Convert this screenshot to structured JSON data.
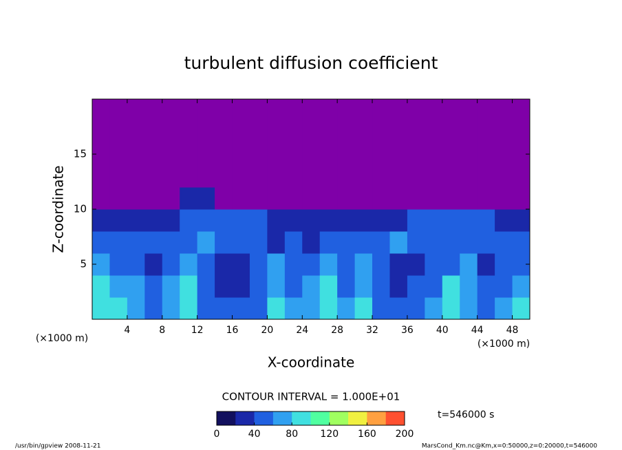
{
  "chart_data": {
    "type": "contour",
    "title": "turbulent diffusion coefficient",
    "xlabel": "X-coordinate",
    "ylabel": "Z-coordinate",
    "x_unit": "(×1000 m)",
    "y_unit": "(×1000 m)",
    "xlim": [
      0,
      50
    ],
    "ylim": [
      0,
      20
    ],
    "xticks": [
      4,
      8,
      12,
      16,
      20,
      24,
      28,
      32,
      36,
      40,
      44,
      48
    ],
    "yticks": [
      5,
      10,
      15
    ],
    "null_color": "#7f00a8",
    "z": [
      [
        90,
        80,
        60,
        50,
        70,
        90,
        50,
        40,
        40,
        50,
        90,
        60,
        70,
        90,
        60,
        80,
        50,
        40,
        50,
        60,
        90,
        70,
        50,
        60,
        80
      ],
      [
        80,
        60,
        70,
        50,
        60,
        80,
        40,
        30,
        30,
        40,
        70,
        50,
        60,
        80,
        50,
        70,
        40,
        30,
        40,
        50,
        80,
        60,
        40,
        50,
        70
      ],
      [
        60,
        40,
        50,
        30,
        40,
        70,
        50,
        30,
        30,
        40,
        60,
        40,
        50,
        70,
        40,
        60,
        40,
        30,
        30,
        40,
        50,
        60,
        30,
        40,
        50
      ],
      [
        40,
        50,
        40,
        50,
        40,
        50,
        60,
        50,
        40,
        40,
        30,
        40,
        30,
        40,
        50,
        40,
        50,
        60,
        50,
        50,
        40,
        50,
        40,
        40,
        50
      ],
      [
        30,
        30,
        30,
        30,
        20,
        40,
        40,
        40,
        40,
        40,
        20,
        20,
        20,
        20,
        20,
        20,
        20,
        20,
        40,
        40,
        40,
        40,
        40,
        30,
        30
      ],
      [
        null,
        null,
        null,
        null,
        null,
        20,
        20,
        null,
        null,
        null,
        null,
        null,
        null,
        null,
        null,
        null,
        null,
        null,
        null,
        null,
        null,
        null,
        null,
        null,
        null
      ],
      [
        null,
        null,
        null,
        null,
        null,
        null,
        null,
        null,
        null,
        null,
        null,
        null,
        null,
        null,
        null,
        null,
        null,
        null,
        null,
        null,
        null,
        null,
        null,
        null,
        null
      ],
      [
        null,
        null,
        null,
        null,
        null,
        null,
        null,
        null,
        null,
        null,
        null,
        null,
        null,
        null,
        null,
        null,
        null,
        null,
        null,
        null,
        null,
        null,
        null,
        null,
        null
      ],
      [
        null,
        null,
        null,
        null,
        null,
        null,
        null,
        null,
        null,
        null,
        null,
        null,
        null,
        null,
        null,
        null,
        null,
        null,
        null,
        null,
        null,
        null,
        null,
        null,
        null
      ],
      [
        null,
        null,
        null,
        null,
        null,
        null,
        null,
        null,
        null,
        null,
        null,
        null,
        null,
        null,
        null,
        null,
        null,
        null,
        null,
        null,
        null,
        null,
        null,
        null,
        null
      ]
    ],
    "clim": [
      0,
      200
    ],
    "colors": [
      "#12105e",
      "#1a28a8",
      "#2060e0",
      "#30a0f0",
      "#40e0e0",
      "#50ffa0",
      "#a0ff60",
      "#f0f040",
      "#ffa040",
      "#ff5030"
    ],
    "colorbar_ticks": [
      0,
      40,
      80,
      120,
      160,
      200
    ],
    "contour_interval_text": "CONTOUR INTERVAL = 1.000E+01",
    "time_text": "t=546000 s",
    "footer_left": "/usr/bin/gpview  2008-11-21",
    "footer_right": "MarsCond_Km.nc@Km,x=0:50000,z=0:20000,t=546000"
  }
}
